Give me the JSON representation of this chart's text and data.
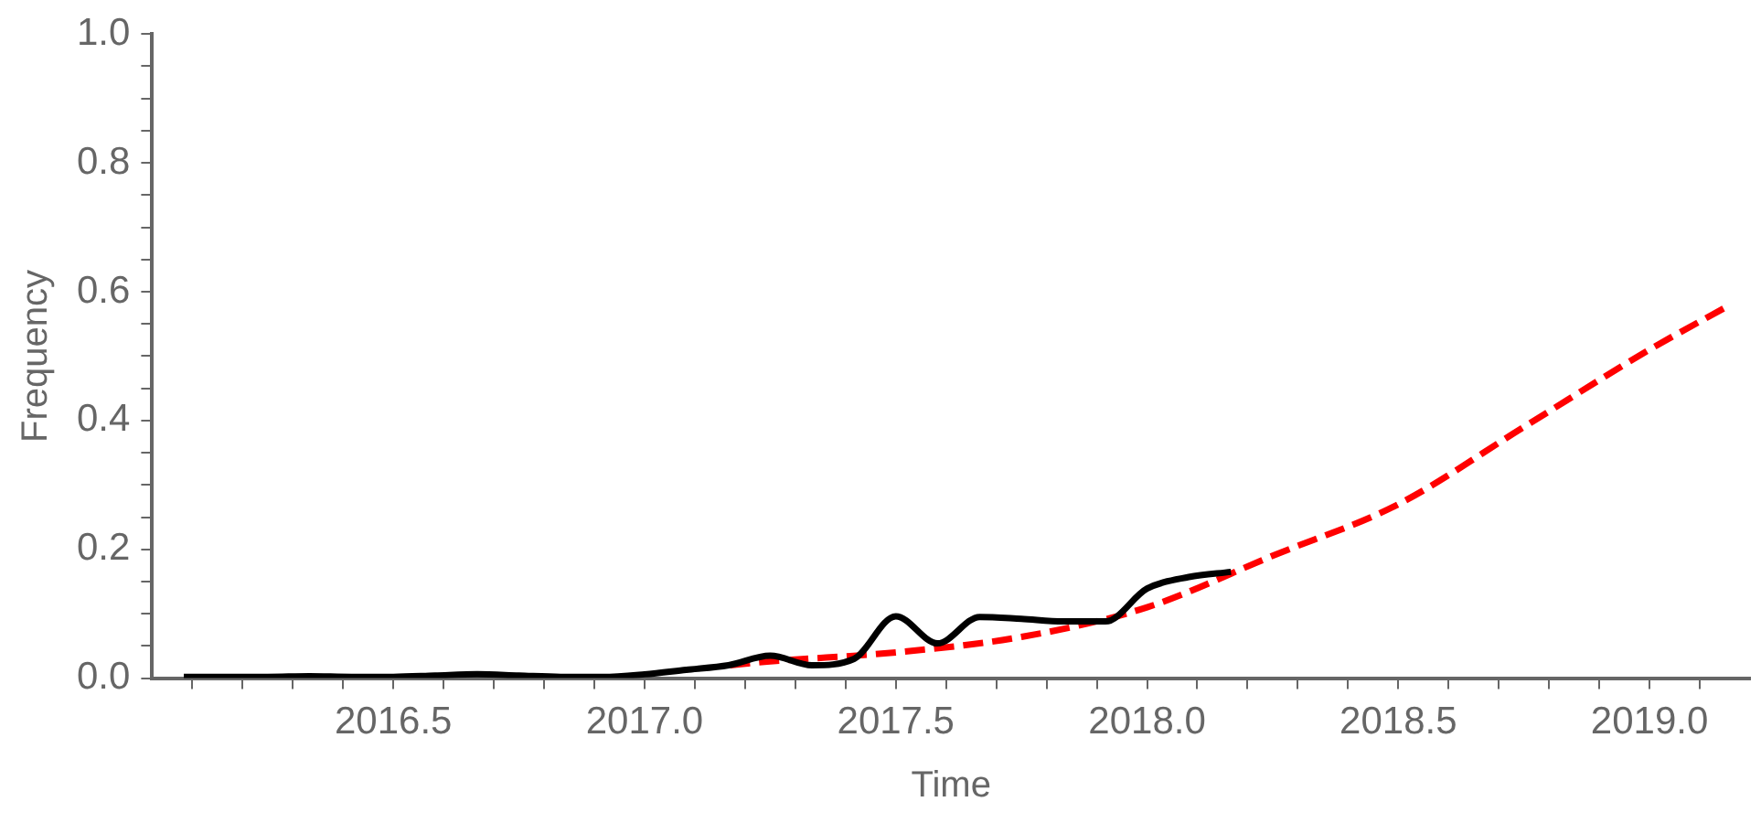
{
  "chart_data": {
    "type": "line",
    "xlabel": "Time",
    "ylabel": "Frequency",
    "xlim": [
      2016.02,
      2019.2
    ],
    "ylim": [
      0,
      1
    ],
    "xticks": [
      {
        "value": 2016.1,
        "label": null
      },
      {
        "value": 2016.2,
        "label": null
      },
      {
        "value": 2016.3,
        "label": null
      },
      {
        "value": 2016.4,
        "label": null
      },
      {
        "value": 2016.5,
        "label": "2016.5"
      },
      {
        "value": 2016.6,
        "label": null
      },
      {
        "value": 2016.7,
        "label": null
      },
      {
        "value": 2016.8,
        "label": null
      },
      {
        "value": 2016.9,
        "label": null
      },
      {
        "value": 2017,
        "label": "2017.0"
      },
      {
        "value": 2017.1,
        "label": null
      },
      {
        "value": 2017.2,
        "label": null
      },
      {
        "value": 2017.3,
        "label": null
      },
      {
        "value": 2017.4,
        "label": null
      },
      {
        "value": 2017.5,
        "label": "2017.5"
      },
      {
        "value": 2017.6,
        "label": null
      },
      {
        "value": 2017.7,
        "label": null
      },
      {
        "value": 2017.8,
        "label": null
      },
      {
        "value": 2017.9,
        "label": null
      },
      {
        "value": 2018,
        "label": "2018.0"
      },
      {
        "value": 2018.1,
        "label": null
      },
      {
        "value": 2018.2,
        "label": null
      },
      {
        "value": 2018.3,
        "label": null
      },
      {
        "value": 2018.4,
        "label": null
      },
      {
        "value": 2018.5,
        "label": "2018.5"
      },
      {
        "value": 2018.6,
        "label": null
      },
      {
        "value": 2018.7,
        "label": null
      },
      {
        "value": 2018.8,
        "label": null
      },
      {
        "value": 2018.9,
        "label": null
      },
      {
        "value": 2019,
        "label": "2019.0"
      },
      {
        "value": 2019.1,
        "label": null
      }
    ],
    "yticks": [
      {
        "value": 0,
        "label": "0.0"
      },
      {
        "value": 0.05,
        "label": null
      },
      {
        "value": 0.1,
        "label": null
      },
      {
        "value": 0.15,
        "label": null
      },
      {
        "value": 0.2,
        "label": "0.2"
      },
      {
        "value": 0.25,
        "label": null
      },
      {
        "value": 0.3,
        "label": null
      },
      {
        "value": 0.35,
        "label": null
      },
      {
        "value": 0.4,
        "label": "0.4"
      },
      {
        "value": 0.45,
        "label": null
      },
      {
        "value": 0.5,
        "label": null
      },
      {
        "value": 0.55,
        "label": null
      },
      {
        "value": 0.6,
        "label": "0.6"
      },
      {
        "value": 0.65,
        "label": null
      },
      {
        "value": 0.7,
        "label": null
      },
      {
        "value": 0.75,
        "label": null
      },
      {
        "value": 0.8,
        "label": "0.8"
      },
      {
        "value": 0.85,
        "label": null
      },
      {
        "value": 0.9,
        "label": null
      },
      {
        "value": 0.95,
        "label": null
      },
      {
        "value": 1,
        "label": "1.0"
      }
    ],
    "grid": false,
    "legend": false,
    "marker": "none",
    "series": [
      {
        "color": "#000000",
        "line_style": "solid",
        "x": [
          2016.083,
          2016.167,
          2016.25,
          2016.333,
          2016.417,
          2016.5,
          2016.583,
          2016.667,
          2016.75,
          2016.833,
          2016.917,
          2017.0,
          2017.083,
          2017.167,
          2017.25,
          2017.333,
          2017.417,
          2017.5,
          2017.583,
          2017.667,
          2017.75,
          2017.833,
          2017.917,
          2018.0,
          2018.083,
          2018.167
        ],
        "values": [
          0.002,
          0.002,
          0.002,
          0.003,
          0.002,
          0.002,
          0.004,
          0.006,
          0.004,
          0.002,
          0.002,
          0.006,
          0.013,
          0.02,
          0.035,
          0.02,
          0.03,
          0.096,
          0.054,
          0.095,
          0.092,
          0.088,
          0.088,
          0.139,
          0.157,
          0.165
        ]
      },
      {
        "color": "#ff0000",
        "line_style": "dashed",
        "x": [
          2017.17,
          2017.25,
          2017.5,
          2017.75,
          2018.0,
          2018.25,
          2018.5,
          2018.75,
          2019.0,
          2019.15
        ],
        "values": [
          0.02,
          0.026,
          0.04,
          0.064,
          0.11,
          0.19,
          0.27,
          0.39,
          0.51,
          0.575
        ]
      }
    ]
  }
}
